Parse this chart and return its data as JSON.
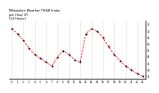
{
  "title": "Milwaukee Weather THSW Index\nper Hour (F)\n(24 Hours)",
  "x": [
    0,
    1,
    2,
    3,
    4,
    5,
    6,
    7,
    8,
    9,
    10,
    11,
    12,
    13,
    14,
    15,
    16,
    17,
    18,
    19,
    20,
    21,
    22,
    23
  ],
  "y": [
    72,
    68,
    63,
    57,
    52,
    49,
    46,
    43,
    50,
    55,
    52,
    48,
    46,
    68,
    72,
    70,
    65,
    58,
    52,
    47,
    43,
    40,
    37,
    35
  ],
  "line_color": "#ff0000",
  "marker_color": "#000000",
  "bg_color": "#ffffff",
  "ylim": [
    33,
    78
  ],
  "xlim": [
    -0.5,
    23.5
  ],
  "yticks": [
    35,
    40,
    45,
    50,
    55,
    60,
    65,
    70,
    75
  ],
  "xtick_positions": [
    0,
    1,
    2,
    3,
    4,
    5,
    6,
    7,
    8,
    9,
    10,
    11,
    12,
    13,
    14,
    15,
    16,
    17,
    18,
    19,
    20,
    21,
    22,
    23
  ],
  "xtick_labels": [
    "0",
    "1",
    "2",
    "3",
    "4",
    "5",
    "6",
    "7",
    "8",
    "9",
    "10",
    "11",
    "12",
    "13",
    "14",
    "15",
    "16",
    "17",
    "18",
    "19",
    "20",
    "21",
    "22",
    "23"
  ],
  "vgrid_positions": [
    0,
    2,
    4,
    6,
    8,
    10,
    12,
    14,
    16,
    18,
    20,
    22
  ],
  "grid_color": "#aaaaaa"
}
